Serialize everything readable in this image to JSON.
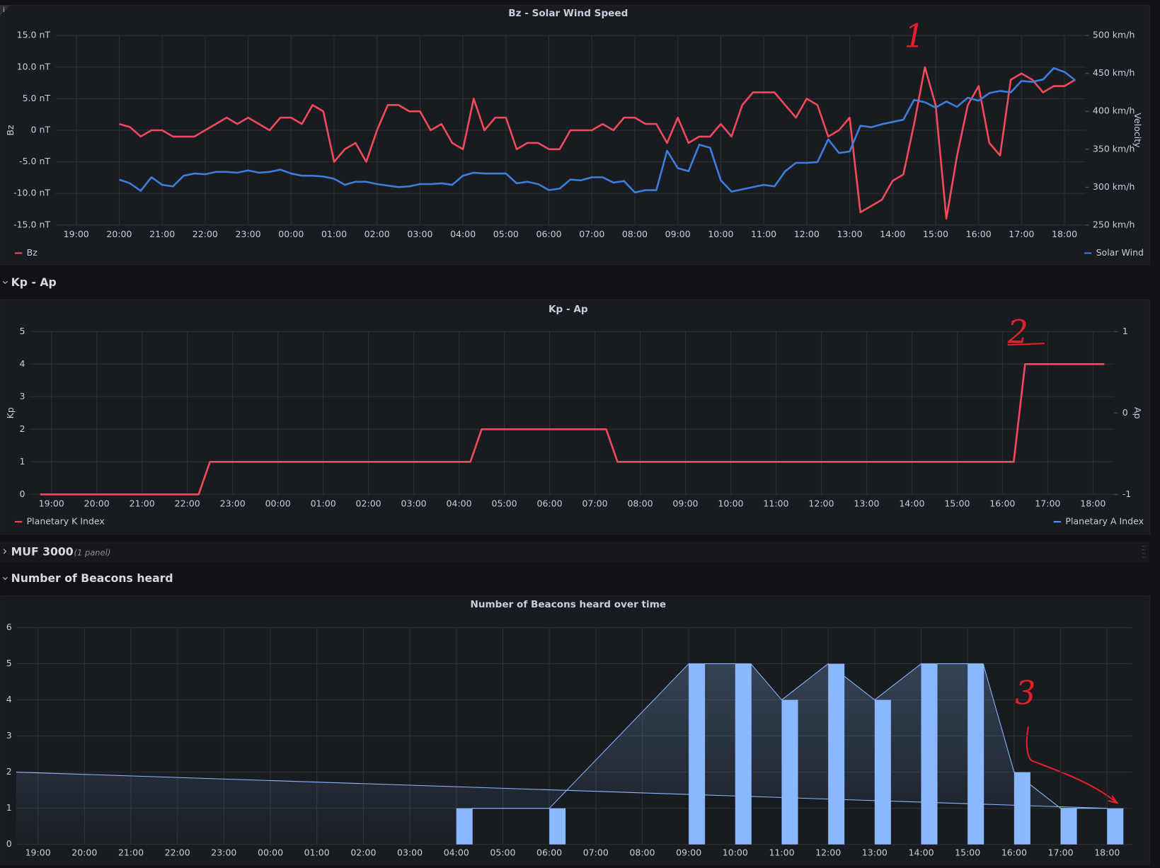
{
  "info_icon": "i",
  "rows": [
    {
      "title": "Kp - Ap"
    },
    {
      "title": "MUF 3000",
      "note": "(1 panel)"
    },
    {
      "title": "Number of Beacons heard"
    }
  ],
  "chart_data": [
    {
      "type": "line",
      "title": "Bz - Solar Wind Speed",
      "ylabel": "Bz",
      "y2label": "Velocity",
      "annotations": [
        "1"
      ],
      "xlim": [
        "18:31",
        "18:29"
      ],
      "xticks": [
        "19:00",
        "20:00",
        "21:00",
        "22:00",
        "23:00",
        "00:00",
        "01:00",
        "02:00",
        "03:00",
        "04:00",
        "05:00",
        "06:00",
        "07:00",
        "08:00",
        "09:00",
        "10:00",
        "11:00",
        "12:00",
        "13:00",
        "14:00",
        "15:00",
        "16:00",
        "17:00",
        "18:00"
      ],
      "ylim": [
        -15,
        15
      ],
      "yticks": [
        {
          "value": 15,
          "label": "15.0 nT"
        },
        {
          "value": 10,
          "label": "10.0 nT"
        },
        {
          "value": 5,
          "label": "5.0 nT"
        },
        {
          "value": 0,
          "label": "0 nT"
        },
        {
          "value": -5,
          "label": "-5.0 nT"
        },
        {
          "value": -10,
          "label": "-10.0 nT"
        },
        {
          "value": -15,
          "label": "-15.0 nT"
        }
      ],
      "y2lim": [
        250,
        500
      ],
      "y2ticks": [
        {
          "value": 500,
          "label": "500 km/h"
        },
        {
          "value": 450,
          "label": "450 km/h"
        },
        {
          "value": 400,
          "label": "400 km/h"
        },
        {
          "value": 350,
          "label": "350 km/h"
        },
        {
          "value": 300,
          "label": "300 km/h"
        },
        {
          "value": 250,
          "label": "250 km/h"
        }
      ],
      "grid": true,
      "x": [
        "20:00",
        "20:15",
        "20:30",
        "20:45",
        "21:00",
        "21:15",
        "21:30",
        "21:45",
        "22:00",
        "22:15",
        "22:30",
        "22:45",
        "23:00",
        "23:15",
        "23:30",
        "23:45",
        "00:00",
        "00:15",
        "00:30",
        "00:45",
        "01:00",
        "01:15",
        "01:30",
        "01:45",
        "02:00",
        "02:15",
        "02:30",
        "02:45",
        "03:00",
        "03:15",
        "03:30",
        "03:45",
        "04:00",
        "04:15",
        "04:30",
        "04:45",
        "05:00",
        "05:15",
        "05:30",
        "05:45",
        "06:00",
        "06:15",
        "06:30",
        "06:45",
        "07:00",
        "07:15",
        "07:30",
        "07:45",
        "08:00",
        "08:15",
        "08:30",
        "08:45",
        "09:00",
        "09:15",
        "09:30",
        "09:45",
        "10:00",
        "10:15",
        "10:30",
        "10:45",
        "11:00",
        "11:15",
        "11:30",
        "11:45",
        "12:00",
        "12:15",
        "12:30",
        "12:45",
        "13:00",
        "13:15",
        "13:30",
        "13:45",
        "14:00",
        "14:15",
        "14:30",
        "14:45",
        "15:00",
        "15:15",
        "15:30",
        "15:45",
        "16:00",
        "16:15",
        "16:30",
        "16:45",
        "17:00",
        "17:15",
        "17:30",
        "17:45",
        "18:00",
        "18:15"
      ],
      "series": [
        {
          "name": "Bz",
          "color": "#f2495c",
          "values": [
            1,
            0.5,
            -1,
            0,
            0,
            -1,
            -1,
            -1,
            0,
            1,
            2,
            1,
            2,
            1,
            0,
            2,
            2,
            1,
            4,
            3,
            -5,
            -3,
            -2,
            -5,
            0,
            4,
            4,
            3,
            3,
            0,
            1,
            -2,
            -3,
            5,
            0,
            2,
            2,
            -3,
            -2,
            -2,
            -3,
            -3,
            0,
            0,
            0,
            1,
            0,
            2,
            2,
            1,
            1,
            -2,
            2,
            -2,
            -1,
            -1,
            1,
            -1,
            4,
            6,
            6,
            6,
            4,
            2,
            5,
            4,
            -1,
            0,
            2,
            -13,
            -12,
            -11,
            -8,
            -7,
            1,
            10,
            4,
            -14,
            -4,
            4,
            7,
            -2,
            -4,
            8,
            9,
            8,
            6,
            7,
            7,
            8
          ]
        },
        {
          "name": "Solar Wind",
          "color": "#3d7ddb",
          "axis": "y2",
          "values": [
            310,
            305,
            295,
            313,
            303,
            301,
            315,
            318,
            317,
            320,
            320,
            319,
            322,
            319,
            320,
            323,
            318,
            315,
            315,
            314,
            311,
            303,
            307,
            307,
            304,
            302,
            300,
            301,
            304,
            304,
            305,
            303,
            315,
            319,
            318,
            318,
            318,
            305,
            307,
            304,
            296,
            298,
            310,
            309,
            313,
            313,
            306,
            308,
            293,
            296,
            296,
            348,
            325,
            321,
            356,
            352,
            309,
            294,
            297,
            300,
            303,
            301,
            321,
            332,
            332,
            333,
            363,
            345,
            347,
            381,
            379,
            383,
            386,
            389,
            415,
            412,
            405,
            413,
            406,
            418,
            414,
            424,
            427,
            425,
            440,
            439,
            442,
            457,
            452,
            441
          ]
        }
      ]
    },
    {
      "type": "line",
      "title": "Kp - Ap",
      "ylabel": "Kp",
      "y2label": "Ap",
      "annotations": [
        "2"
      ],
      "xlim": [
        "18:31",
        "18:28"
      ],
      "xticks": [
        "19:00",
        "20:00",
        "21:00",
        "22:00",
        "23:00",
        "00:00",
        "01:00",
        "02:00",
        "03:00",
        "04:00",
        "05:00",
        "06:00",
        "07:00",
        "08:00",
        "09:00",
        "10:00",
        "11:00",
        "12:00",
        "13:00",
        "14:00",
        "15:00",
        "16:00",
        "17:00",
        "18:00"
      ],
      "ylim": [
        0,
        5
      ],
      "yticks": [
        0,
        1,
        2,
        3,
        4,
        5
      ],
      "y2lim": [
        -1,
        1
      ],
      "y2ticks": [
        1,
        0,
        -1
      ],
      "grid": true,
      "x": [
        "18:45",
        "22:15",
        "22:30",
        "04:15",
        "04:30",
        "07:15",
        "07:30",
        "16:15",
        "16:30",
        "18:15"
      ],
      "series": [
        {
          "name": "Planetary K Index",
          "color": "#f2495c",
          "values": [
            0,
            0,
            1,
            1,
            2,
            2,
            1,
            1,
            4,
            4
          ]
        },
        {
          "name": "Planetary A Index",
          "color": "#5794f2",
          "axis": "y2",
          "values": [
            null,
            null,
            null,
            null,
            null,
            null,
            null,
            null,
            null,
            null
          ]
        }
      ]
    },
    {
      "type": "bar",
      "title": "Number of Beacons heard over time",
      "annotations": [
        "3"
      ],
      "xlim": [
        "18:32",
        "18:32"
      ],
      "xticks": [
        "19:00",
        "20:00",
        "21:00",
        "22:00",
        "23:00",
        "00:00",
        "01:00",
        "02:00",
        "03:00",
        "04:00",
        "05:00",
        "06:00",
        "07:00",
        "08:00",
        "09:00",
        "10:00",
        "11:00",
        "12:00",
        "13:00",
        "14:00",
        "15:00",
        "16:00",
        "17:00",
        "18:00"
      ],
      "ylim": [
        0,
        6
      ],
      "yticks": [
        0,
        1,
        2,
        3,
        4,
        5,
        6
      ],
      "grid": true,
      "series": [
        {
          "type": "bar",
          "color": "#8ab8ff",
          "x": [
            "04:00",
            "06:00",
            "09:00",
            "10:00",
            "11:00",
            "12:00",
            "13:00",
            "14:00",
            "15:00",
            "16:00",
            "17:00",
            "18:00"
          ],
          "values": [
            1,
            1,
            5,
            5,
            4,
            5,
            4,
            5,
            5,
            2,
            1,
            1
          ]
        },
        {
          "type": "area",
          "color": "#8ab8ff",
          "x": [
            "04:20",
            "06:00",
            "09:00",
            "10:20",
            "11:00",
            "12:00",
            "13:00",
            "14:00",
            "15:20",
            "16:00",
            "17:00",
            "18:00",
            "18:32"
          ],
          "values": [
            1,
            1,
            5,
            5,
            4,
            5,
            4,
            5,
            5,
            2,
            1,
            1,
            2
          ]
        }
      ]
    }
  ]
}
